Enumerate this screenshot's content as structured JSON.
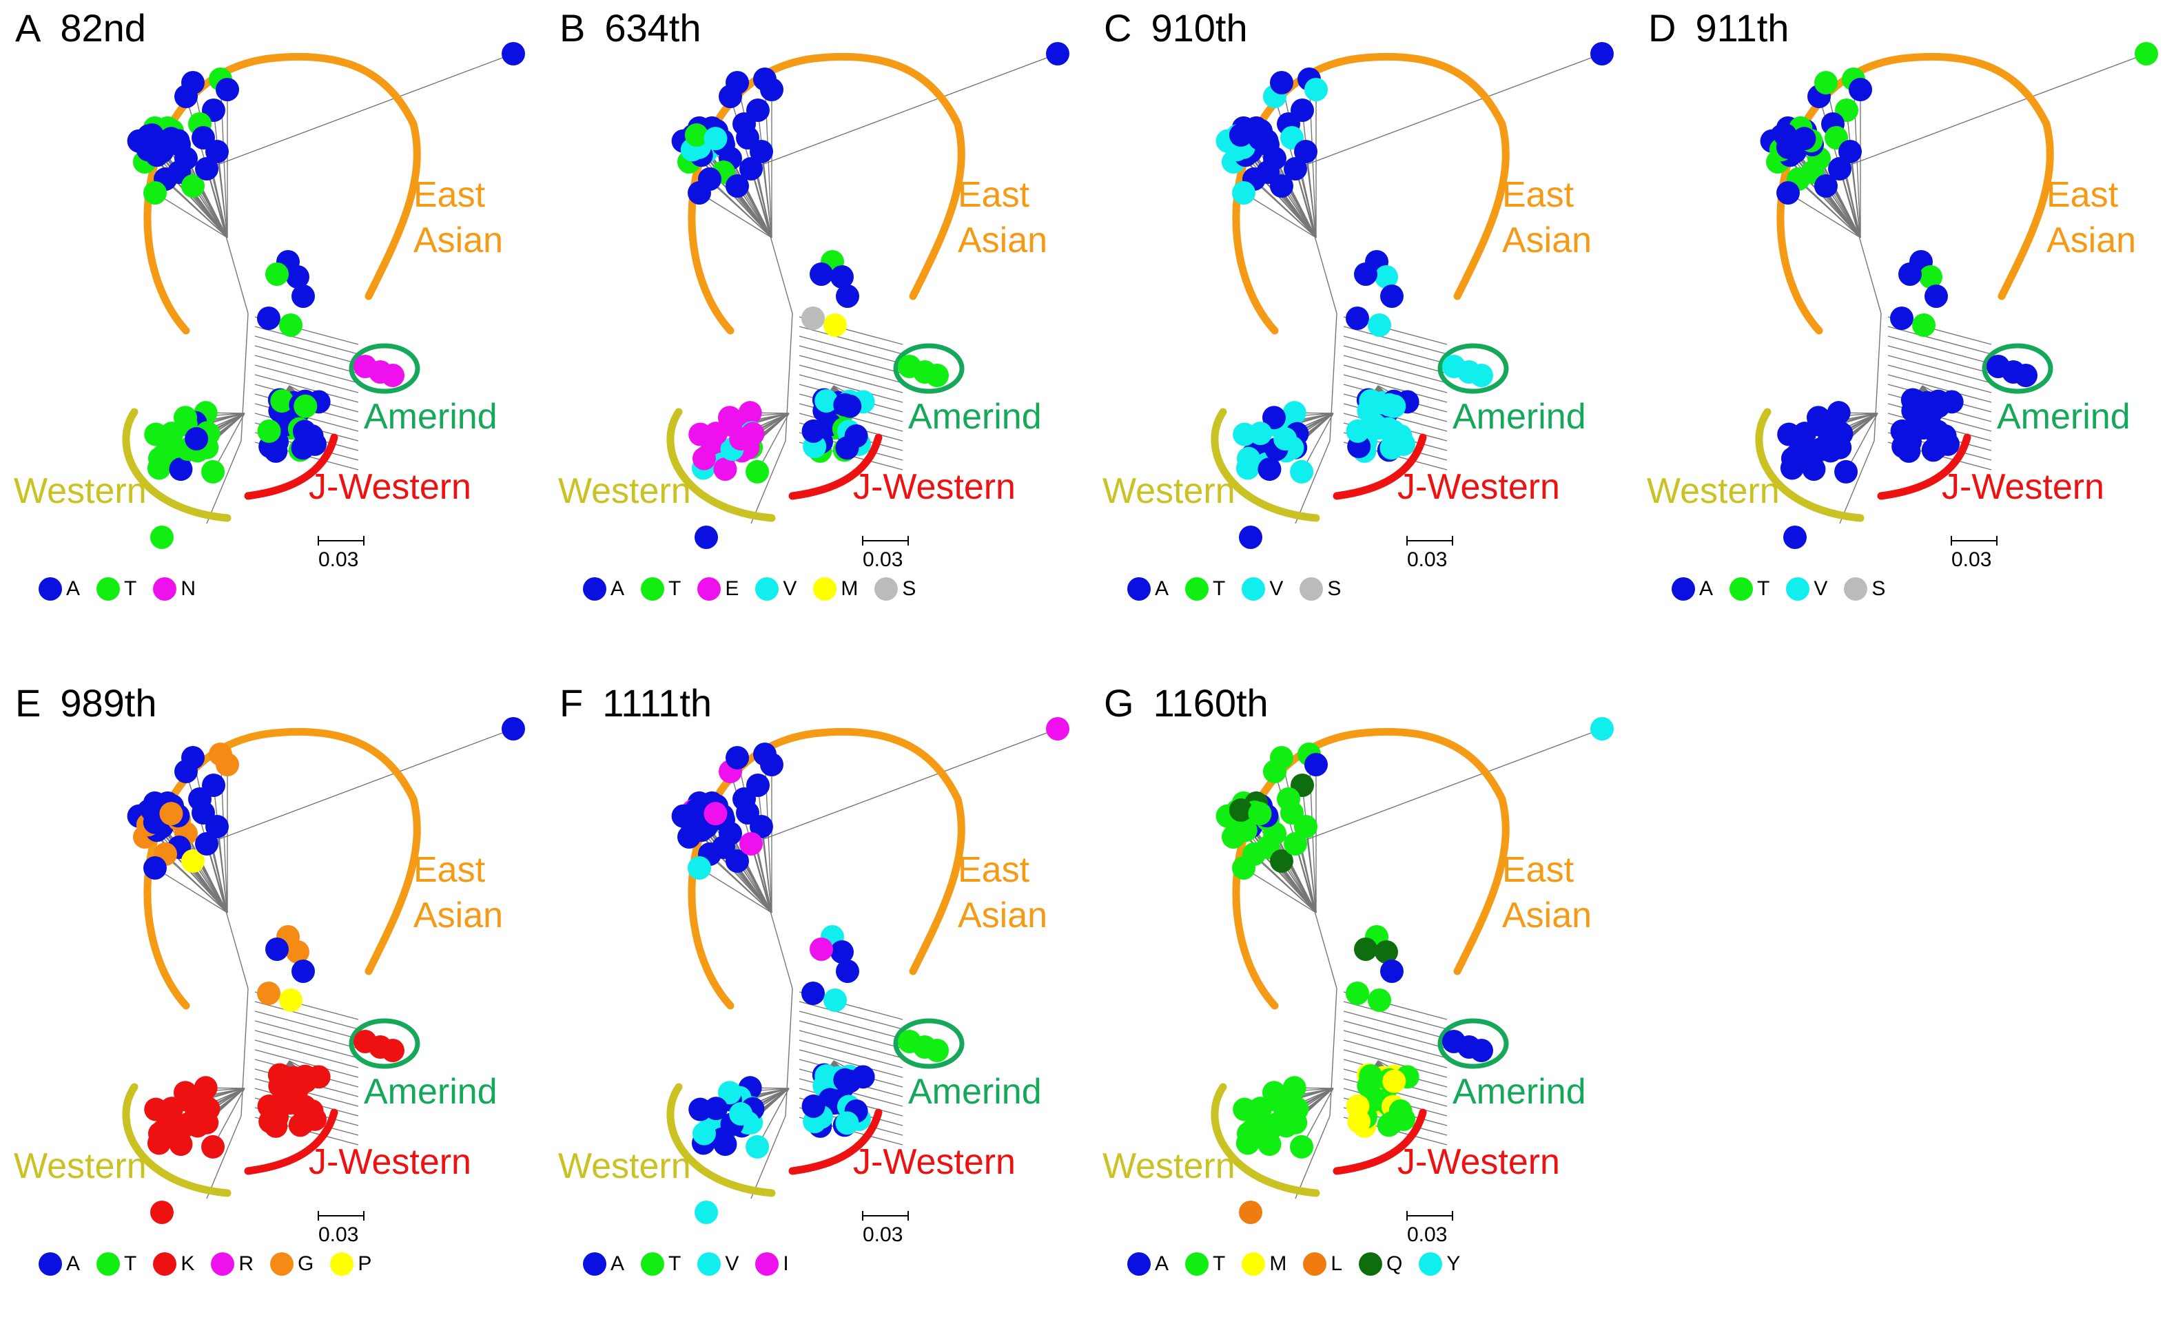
{
  "colors": {
    "A": "#0a10e0",
    "T": "#11ee11",
    "N": "#ee11ee",
    "E": "#ee11ee",
    "V": "#11eeee",
    "M": "#ffff00",
    "S": "#bbbbbb",
    "K": "#ee1111",
    "R": "#ee11ee",
    "G": "#f58a14",
    "P": "#ffff00",
    "I": "#ee11ee",
    "L": "#f07c10",
    "Q": "#0e6e0e",
    "Y": "#11eeee",
    "clade_east_asian": "#f59a14",
    "clade_amerind": "#16a85a",
    "clade_western": "#c9c222",
    "clade_j_western": "#ee1111"
  },
  "clades": {
    "east": "East",
    "asian": "Asian",
    "amerind": "Amerind",
    "western": "Western",
    "j_western": "J-Western"
  },
  "scale": "0.03",
  "panels": [
    {
      "letter": "A",
      "position": "82nd",
      "legend": [
        {
          "code": "A",
          "label": "A"
        },
        {
          "code": "T",
          "label": "T"
        },
        {
          "code": "N",
          "label": "N"
        }
      ],
      "map": {
        "base": "A",
        "single": "A",
        "E": [
          [
            "T",
            0.4
          ],
          [
            "A",
            0.6
          ]
        ],
        "D": [
          "A",
          "A",
          "T",
          "A",
          "A",
          "T"
        ],
        "Am": "N",
        "J": [
          [
            "A",
            0.75
          ],
          [
            "T",
            0.25
          ]
        ],
        "W": [
          [
            "T",
            0.85
          ],
          [
            "A",
            0.15
          ]
        ],
        "out": "T"
      }
    },
    {
      "letter": "B",
      "position": "634th",
      "legend": [
        {
          "code": "A",
          "label": "A"
        },
        {
          "code": "T",
          "label": "T"
        },
        {
          "code": "E",
          "label": "E"
        },
        {
          "code": "V",
          "label": "V"
        },
        {
          "code": "M",
          "label": "M"
        },
        {
          "code": "S",
          "label": "S"
        }
      ],
      "map": {
        "base": "A",
        "single": "A",
        "E": [
          [
            "A",
            0.8
          ],
          [
            "V",
            0.15
          ],
          [
            "T",
            0.05
          ]
        ],
        "D": [
          "T",
          "A",
          "A",
          "A",
          "S",
          "M"
        ],
        "Am": "T",
        "J": [
          [
            "A",
            0.5
          ],
          [
            "V",
            0.3
          ],
          [
            "T",
            0.2
          ]
        ],
        "W": [
          [
            "E",
            0.4
          ],
          [
            "V",
            0.3
          ],
          [
            "T",
            0.2
          ],
          [
            "A",
            0.1
          ]
        ],
        "out": "A"
      }
    },
    {
      "letter": "C",
      "position": "910th",
      "legend": [
        {
          "code": "A",
          "label": "A"
        },
        {
          "code": "T",
          "label": "T"
        },
        {
          "code": "V",
          "label": "V"
        },
        {
          "code": "S",
          "label": "S"
        }
      ],
      "map": {
        "base": "A",
        "single": "A",
        "E": [
          [
            "A",
            0.75
          ],
          [
            "V",
            0.25
          ]
        ],
        "D": [
          "A",
          "V",
          "A",
          "A",
          "A",
          "V"
        ],
        "Am": "V",
        "J": [
          [
            "V",
            0.75
          ],
          [
            "A",
            0.25
          ]
        ],
        "W": [
          [
            "V",
            0.6
          ],
          [
            "A",
            0.4
          ]
        ],
        "out": "A"
      }
    },
    {
      "letter": "D",
      "position": "911th",
      "legend": [
        {
          "code": "A",
          "label": "A"
        },
        {
          "code": "T",
          "label": "T"
        },
        {
          "code": "V",
          "label": "V"
        },
        {
          "code": "S",
          "label": "S"
        }
      ],
      "map": {
        "base": "A",
        "single": "T",
        "E": [
          [
            "A",
            0.7
          ],
          [
            "T",
            0.3
          ]
        ],
        "D": [
          "A",
          "T",
          "A",
          "A",
          "A",
          "T"
        ],
        "Am": "A",
        "J": [
          [
            "A",
            1.0
          ]
        ],
        "W": [
          [
            "A",
            0.95
          ],
          [
            "S",
            0.05
          ]
        ],
        "out": "A"
      }
    },
    {
      "letter": "E",
      "position": "989th",
      "legend": [
        {
          "code": "A",
          "label": "A"
        },
        {
          "code": "T",
          "label": "T"
        },
        {
          "code": "K",
          "label": "K"
        },
        {
          "code": "R",
          "label": "R"
        },
        {
          "code": "G",
          "label": "G"
        },
        {
          "code": "P",
          "label": "P"
        }
      ],
      "map": {
        "base": "A",
        "single": "A",
        "E": [
          [
            "A",
            0.6
          ],
          [
            "G",
            0.35
          ],
          [
            "P",
            0.05
          ]
        ],
        "D": [
          "G",
          "G",
          "A",
          "A",
          "G",
          "P"
        ],
        "Am": "K",
        "J": [
          [
            "K",
            1.0
          ]
        ],
        "W": [
          [
            "K",
            1.0
          ]
        ],
        "out": "K"
      }
    },
    {
      "letter": "F",
      "position": "1111th",
      "legend": [
        {
          "code": "A",
          "label": "A"
        },
        {
          "code": "T",
          "label": "T"
        },
        {
          "code": "V",
          "label": "V"
        },
        {
          "code": "I",
          "label": "I"
        }
      ],
      "map": {
        "base": "A",
        "single": "I",
        "E": [
          [
            "A",
            0.8
          ],
          [
            "V",
            0.1
          ],
          [
            "I",
            0.1
          ]
        ],
        "D": [
          "V",
          "A",
          "I",
          "A",
          "A",
          "V"
        ],
        "Am": "T",
        "J": [
          [
            "A",
            0.6
          ],
          [
            "V",
            0.4
          ]
        ],
        "W": [
          [
            "V",
            0.85
          ],
          [
            "A",
            0.15
          ]
        ],
        "out": "V"
      }
    },
    {
      "letter": "G",
      "position": "1160th",
      "legend": [
        {
          "code": "A",
          "label": "A"
        },
        {
          "code": "T",
          "label": "T"
        },
        {
          "code": "M",
          "label": "M"
        },
        {
          "code": "L",
          "label": "L"
        },
        {
          "code": "Q",
          "label": "Q"
        },
        {
          "code": "Y",
          "label": "Y"
        }
      ],
      "map": {
        "base": "T",
        "single": "Y",
        "E": [
          [
            "T",
            0.7
          ],
          [
            "Q",
            0.15
          ],
          [
            "A",
            0.15
          ]
        ],
        "D": [
          "T",
          "Q",
          "Q",
          "A",
          "T",
          "T"
        ],
        "Am": "A",
        "J": [
          [
            "T",
            0.55
          ],
          [
            "M",
            0.45
          ]
        ],
        "W": [
          [
            "T",
            1.0
          ]
        ],
        "out": "L"
      }
    }
  ]
}
